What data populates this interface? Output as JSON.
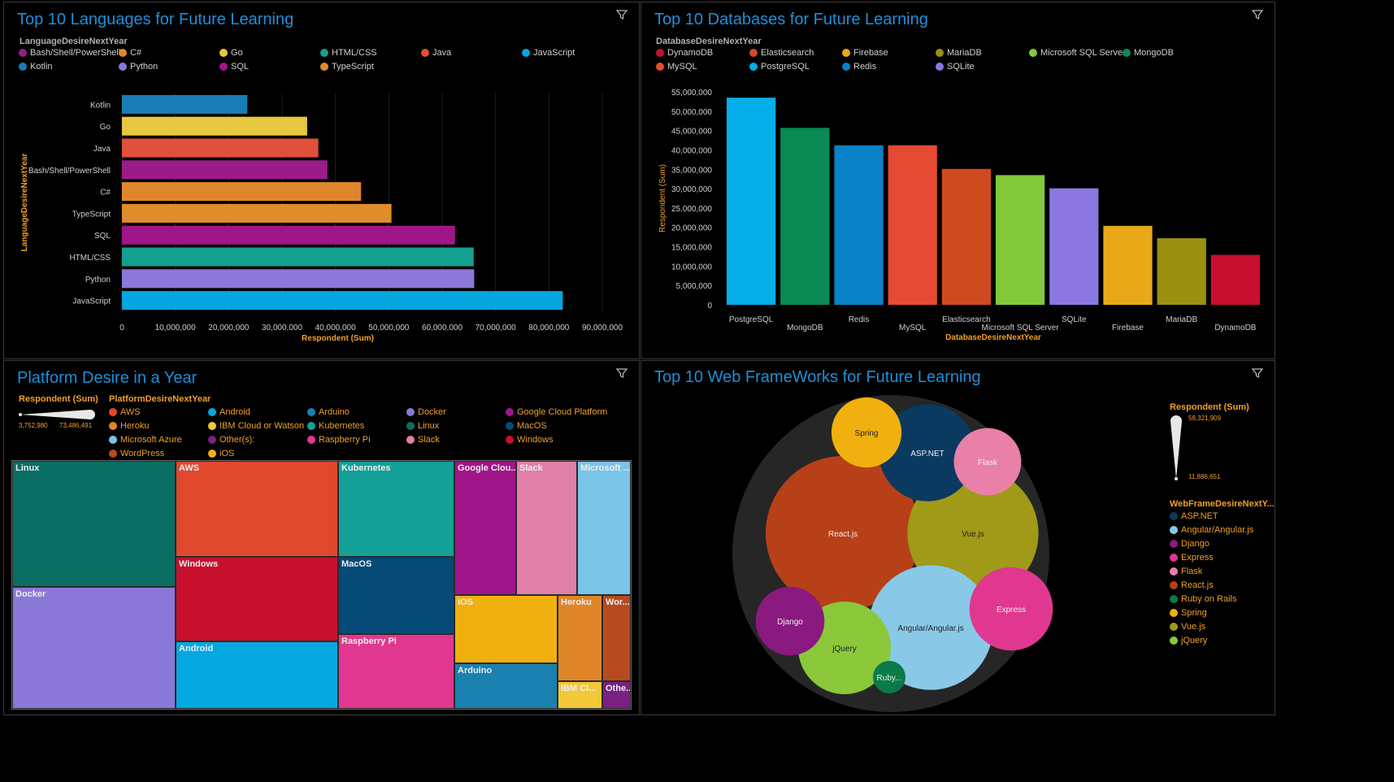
{
  "ui": {
    "filter_icon": "filter-icon"
  },
  "panels": {
    "languages": {
      "title": "Top 10 Languages for Future Learning",
      "legend_title": "LanguageDesireNextYear",
      "legend": [
        {
          "label": "Bash/Shell/PowerShell",
          "color": "#9b1b8a"
        },
        {
          "label": "C#",
          "color": "#e0862a"
        },
        {
          "label": "Go",
          "color": "#e8c840"
        },
        {
          "label": "HTML/CSS",
          "color": "#14a090"
        },
        {
          "label": "Java",
          "color": "#e0503a"
        },
        {
          "label": "JavaScript",
          "color": "#05a6e0"
        },
        {
          "label": "Kotlin",
          "color": "#1a7cb4"
        },
        {
          "label": "Python",
          "color": "#8b78d8"
        },
        {
          "label": "SQL",
          "color": "#a0168a"
        },
        {
          "label": "TypeScript",
          "color": "#e08c2a"
        }
      ]
    },
    "databases": {
      "title": "Top 10 Databases for Future Learning",
      "legend_title": "DatabaseDesireNextYear",
      "legend": [
        {
          "label": "DynamoDB",
          "color": "#c8102e"
        },
        {
          "label": "Elasticsearch",
          "color": "#d04a20"
        },
        {
          "label": "Firebase",
          "color": "#e8a818"
        },
        {
          "label": "MariaDB",
          "color": "#9a9010"
        },
        {
          "label": "Microsoft SQL Server",
          "color": "#82c83a"
        },
        {
          "label": "MongoDB",
          "color": "#0a8a55"
        },
        {
          "label": "MySQL",
          "color": "#e64a32"
        },
        {
          "label": "PostgreSQL",
          "color": "#05aee8"
        },
        {
          "label": "Redis",
          "color": "#0a82c8"
        },
        {
          "label": "SQLite",
          "color": "#8a78e0"
        }
      ]
    },
    "platforms": {
      "title": "Platform Desire in a Year",
      "size_title": "Respondent (Sum)",
      "size_min": "3,752,980",
      "size_max": "73,486,491",
      "legend_title": "PlatformDesireNextYear",
      "legend": [
        {
          "label": "AWS",
          "color": "#e0482e"
        },
        {
          "label": "Android",
          "color": "#05a8e0"
        },
        {
          "label": "Arduino",
          "color": "#1a80b0"
        },
        {
          "label": "Docker",
          "color": "#8a78d8"
        },
        {
          "label": "Google Cloud Platform",
          "color": "#a0168a"
        },
        {
          "label": "Heroku",
          "color": "#e08428"
        },
        {
          "label": "IBM Cloud or Watson",
          "color": "#f0c838"
        },
        {
          "label": "Kubernetes",
          "color": "#14a098"
        },
        {
          "label": "Linux",
          "color": "#0a6e64"
        },
        {
          "label": "MacOS",
          "color": "#064a78"
        },
        {
          "label": "Microsoft Azure",
          "color": "#7ac4e8"
        },
        {
          "label": "Other(s):",
          "color": "#7a2080"
        },
        {
          "label": "Raspberry Pi",
          "color": "#e03890"
        },
        {
          "label": "Slack",
          "color": "#e080a8"
        },
        {
          "label": "Windows",
          "color": "#c8102e"
        },
        {
          "label": "WordPress",
          "color": "#b84a20"
        },
        {
          "label": "iOS",
          "color": "#f0b010"
        }
      ]
    },
    "webframeworks": {
      "title": "Top 10 Web FrameWorks for Future Learning",
      "size_title": "Respondent (Sum)",
      "size_max": "58,321,909",
      "size_min": "11,886,651",
      "legend_title": "WebFrameDesireNextY...",
      "legend": [
        {
          "label": "ASP.NET",
          "color": "#0a3a60"
        },
        {
          "label": "Angular/Angular.js",
          "color": "#8ac8e8"
        },
        {
          "label": "Django",
          "color": "#8a1a80"
        },
        {
          "label": "Express",
          "color": "#e03890"
        },
        {
          "label": "Flask",
          "color": "#e880a8"
        },
        {
          "label": "React.js",
          "color": "#b84018"
        },
        {
          "label": "Ruby on Rails",
          "color": "#0a7a48"
        },
        {
          "label": "Spring",
          "color": "#f0b010"
        },
        {
          "label": "Vue.js",
          "color": "#a09a18"
        },
        {
          "label": "jQuery",
          "color": "#8ac83a"
        }
      ]
    }
  },
  "chart_data": [
    {
      "id": "languages",
      "type": "bar",
      "orientation": "horizontal",
      "title": "Top 10 Languages for Future Learning",
      "xlabel": "Respondent (Sum)",
      "ylabel": "LanguageDesireNextYear",
      "categories": [
        "Kotlin",
        "Go",
        "Java",
        "Bash/Shell/PowerShell",
        "C#",
        "TypeScript",
        "SQL",
        "HTML/CSS",
        "Python",
        "JavaScript"
      ],
      "values": [
        23500000,
        34700000,
        36800000,
        38500000,
        44800000,
        50500000,
        62400000,
        65900000,
        66000000,
        82600000
      ],
      "colors": [
        "#1a7cb4",
        "#e8c840",
        "#e0503a",
        "#9b1b8a",
        "#e0862a",
        "#e08c2a",
        "#a0168a",
        "#14a090",
        "#8b78d8",
        "#05a6e0"
      ],
      "xlim": [
        0,
        90000000
      ],
      "xticks": [
        0,
        10000000,
        20000000,
        30000000,
        40000000,
        50000000,
        60000000,
        70000000,
        80000000,
        90000000
      ],
      "xtick_labels": [
        "0",
        "10,000,000",
        "20,000,000",
        "30,000,000",
        "40,000,000",
        "50,000,000",
        "60,000,000",
        "70,000,000",
        "80,000,000",
        "90,000,000"
      ]
    },
    {
      "id": "databases",
      "type": "bar",
      "title": "Top 10 Databases for Future Learning",
      "xlabel": "DatabaseDesireNextYear",
      "ylabel": "Respondent (Sum)",
      "categories": [
        "PostgreSQL",
        "MongoDB",
        "Redis",
        "MySQL",
        "Elasticsearch",
        "Microsoft SQL Server",
        "SQLite",
        "Firebase",
        "MariaDB",
        "DynamoDB"
      ],
      "values": [
        53500000,
        45700000,
        41200000,
        41200000,
        35100000,
        33500000,
        30100000,
        20400000,
        17200000,
        12900000
      ],
      "colors": [
        "#05aee8",
        "#0a8a55",
        "#0a82c8",
        "#e64a32",
        "#d04a20",
        "#82c83a",
        "#8a78e0",
        "#e8a818",
        "#9a9010",
        "#c8102e"
      ],
      "ylim": [
        0,
        55000000
      ],
      "yticks": [
        0,
        5000000,
        10000000,
        15000000,
        20000000,
        25000000,
        30000000,
        35000000,
        40000000,
        45000000,
        50000000,
        55000000
      ],
      "ytick_labels": [
        "0",
        "5,000,000",
        "10,000,000",
        "15,000,000",
        "20,000,000",
        "25,000,000",
        "30,000,000",
        "35,000,000",
        "40,000,000",
        "45,000,000",
        "50,000,000",
        "55,000,000"
      ]
    },
    {
      "id": "platforms",
      "type": "treemap",
      "title": "Platform Desire in a Year",
      "items": [
        {
          "label": "Linux",
          "value": 73486491,
          "color": "#0a6e64"
        },
        {
          "label": "Docker",
          "value": 73000000,
          "color": "#8a78d8"
        },
        {
          "label": "AWS",
          "value": 55000000,
          "color": "#e0482e"
        },
        {
          "label": "Windows",
          "value": 46000000,
          "color": "#c8102e"
        },
        {
          "label": "Android",
          "value": 39000000,
          "color": "#05a8e0"
        },
        {
          "label": "Kubernetes",
          "value": 36000000,
          "color": "#14a098"
        },
        {
          "label": "MacOS",
          "value": 29000000,
          "color": "#064a78"
        },
        {
          "label": "Raspberry Pi",
          "value": 29000000,
          "color": "#e03890"
        },
        {
          "label": "Google Clou...",
          "value": 19000000,
          "color": "#a0168a"
        },
        {
          "label": "Slack",
          "value": 18000000,
          "color": "#e080a8"
        },
        {
          "label": "Microsoft ...",
          "value": 17000000,
          "color": "#7ac4e8"
        },
        {
          "label": "iOS",
          "value": 11000000,
          "color": "#f0b010"
        },
        {
          "label": "Arduino",
          "value": 8000000,
          "color": "#1a80b0"
        },
        {
          "label": "Heroku",
          "value": 7600000,
          "color": "#e08428"
        },
        {
          "label": "Wor...",
          "value": 4800000,
          "color": "#b84a20"
        },
        {
          "label": "IBM Cl...",
          "value": 4500000,
          "color": "#f0c838"
        },
        {
          "label": "Othe...",
          "value": 3752980,
          "color": "#7a2080"
        }
      ]
    },
    {
      "id": "webframeworks",
      "type": "bubble",
      "title": "Top 10 Web FrameWorks for Future Learning",
      "items": [
        {
          "label": "React.js",
          "value": 58321909,
          "color": "#b84018"
        },
        {
          "label": "Vue.js",
          "value": 42000000,
          "color": "#a09a18"
        },
        {
          "label": "Angular/Angular.js",
          "value": 38000000,
          "color": "#8ac8e8"
        },
        {
          "label": "ASP.NET",
          "value": 23000000,
          "color": "#0a3a60"
        },
        {
          "label": "jQuery",
          "value": 21000000,
          "color": "#8ac83a"
        },
        {
          "label": "Express",
          "value": 17000000,
          "color": "#e03890"
        },
        {
          "label": "Spring",
          "value": 13300000,
          "color": "#f0b010"
        },
        {
          "label": "Django",
          "value": 12800000,
          "color": "#8a1a80"
        },
        {
          "label": "Flask",
          "value": 12300000,
          "color": "#e880a8"
        },
        {
          "label": "Ruby...",
          "value": 11886651,
          "color": "#0a7a48"
        }
      ]
    }
  ]
}
